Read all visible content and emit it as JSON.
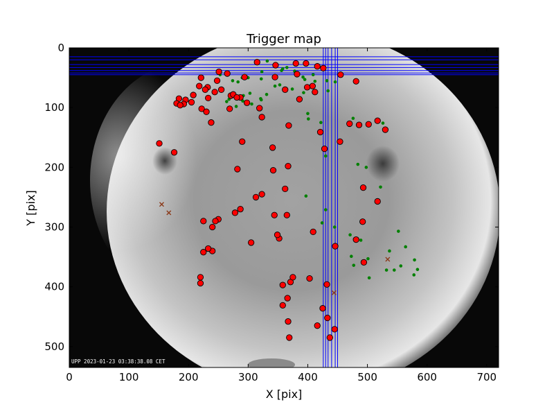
{
  "chart_data": {
    "type": "scatter",
    "title": "Trigger map",
    "xlabel": "X [pix]",
    "ylabel": "Y [pix]",
    "xlim": [
      0,
      720
    ],
    "ylim": [
      535,
      0
    ],
    "xticks": [
      0,
      100,
      200,
      300,
      400,
      500,
      600,
      700
    ],
    "yticks": [
      0,
      100,
      200,
      300,
      400,
      500
    ],
    "grid": false,
    "legend": "none",
    "background_image": "all-sky camera frame, grayscale fisheye",
    "timestamp": "UPP 2023-01-23 03:38:38.08 CET",
    "colors": {
      "red_marker": "#ff0000",
      "green_marker": "#008000",
      "cross_marker": "#8b3a1a",
      "lines": "#0000ff"
    },
    "horizontal_lines_y": [
      15,
      20,
      28,
      33,
      38,
      42,
      45
    ],
    "vertical_lines_x": [
      426,
      430,
      434,
      440,
      446,
      450
    ],
    "series": [
      {
        "marker": "circle-red",
        "x": [
          315,
          346,
          380,
          397,
          416,
          426,
          382,
          345,
          251,
          265,
          362,
          408,
          455,
          481,
          221,
          248,
          255,
          232,
          244,
          294,
          233,
          271,
          218,
          228,
          208,
          184,
          195,
          287,
          275,
          298,
          281,
          323,
          238,
          222,
          205,
          192,
          180,
          186,
          230,
          269,
          319,
          368,
          386,
          399,
          412,
          428,
          454,
          470,
          486,
          502,
          517,
          530,
          176,
          151,
          290,
          341,
          367,
          282,
          342,
          421,
          362,
          323,
          313,
          287,
          278,
          250,
          245,
          240,
          225,
          240,
          233,
          225,
          220,
          344,
          305,
          352,
          365,
          409,
          446,
          494,
          492,
          481,
          517,
          493,
          349,
          358,
          432,
          371,
          403,
          366,
          375,
          358,
          220,
          425,
          433,
          437,
          445,
          416,
          369,
          367
        ],
        "y": [
          24,
          29,
          26,
          26,
          31,
          34,
          44,
          49,
          40,
          43,
          70,
          64,
          45,
          56,
          50,
          55,
          70,
          66,
          74,
          49,
          84,
          80,
          64,
          70,
          79,
          85,
          87,
          83,
          78,
          92,
          83,
          116,
          125,
          102,
          91,
          94,
          93,
          96,
          107,
          102,
          101,
          130,
          86,
          66,
          74,
          169,
          157,
          127,
          129,
          128,
          122,
          137,
          175,
          160,
          157,
          167,
          198,
          203,
          205,
          141,
          236,
          245,
          250,
          270,
          276,
          287,
          290,
          300,
          290,
          340,
          336,
          342,
          394,
          280,
          326,
          319,
          280,
          308,
          332,
          359,
          291,
          321,
          257,
          234,
          313,
          397,
          396,
          392,
          386,
          419,
          384,
          431,
          384,
          436,
          452,
          485,
          471,
          465,
          485,
          458
        ]
      },
      {
        "marker": "dot-green",
        "x": [
          332,
          356,
          358,
          365,
          378,
          382,
          395,
          409,
          432,
          446,
          434,
          412,
          392,
          283,
          274,
          253,
          290,
          300,
          322,
          323,
          345,
          353,
          322,
          331,
          264,
          280,
          268,
          292,
          303,
          306,
          291,
          321,
          374,
          393,
          400,
          401,
          422,
          476,
          526,
          430,
          484,
          498,
          522,
          430,
          397,
          424,
          445,
          471,
          489,
          473,
          477,
          501,
          503,
          532,
          537,
          545,
          552,
          564,
          579,
          584,
          578,
          556
        ],
        "y": [
          22,
          38,
          35,
          33,
          39,
          42,
          53,
          45,
          55,
          57,
          72,
          56,
          49,
          57,
          55,
          45,
          50,
          50,
          52,
          40,
          64,
          62,
          87,
          78,
          90,
          98,
          86,
          80,
          76,
          94,
          89,
          85,
          69,
          75,
          110,
          119,
          125,
          118,
          126,
          181,
          195,
          200,
          233,
          271,
          248,
          293,
          300,
          313,
          322,
          349,
          364,
          353,
          385,
          372,
          340,
          372,
          307,
          333,
          355,
          371,
          380,
          365
        ]
      },
      {
        "marker": "cross",
        "x": [
          155,
          167,
          534,
          444
        ],
        "y": [
          262,
          276,
          354,
          410
        ]
      }
    ]
  }
}
